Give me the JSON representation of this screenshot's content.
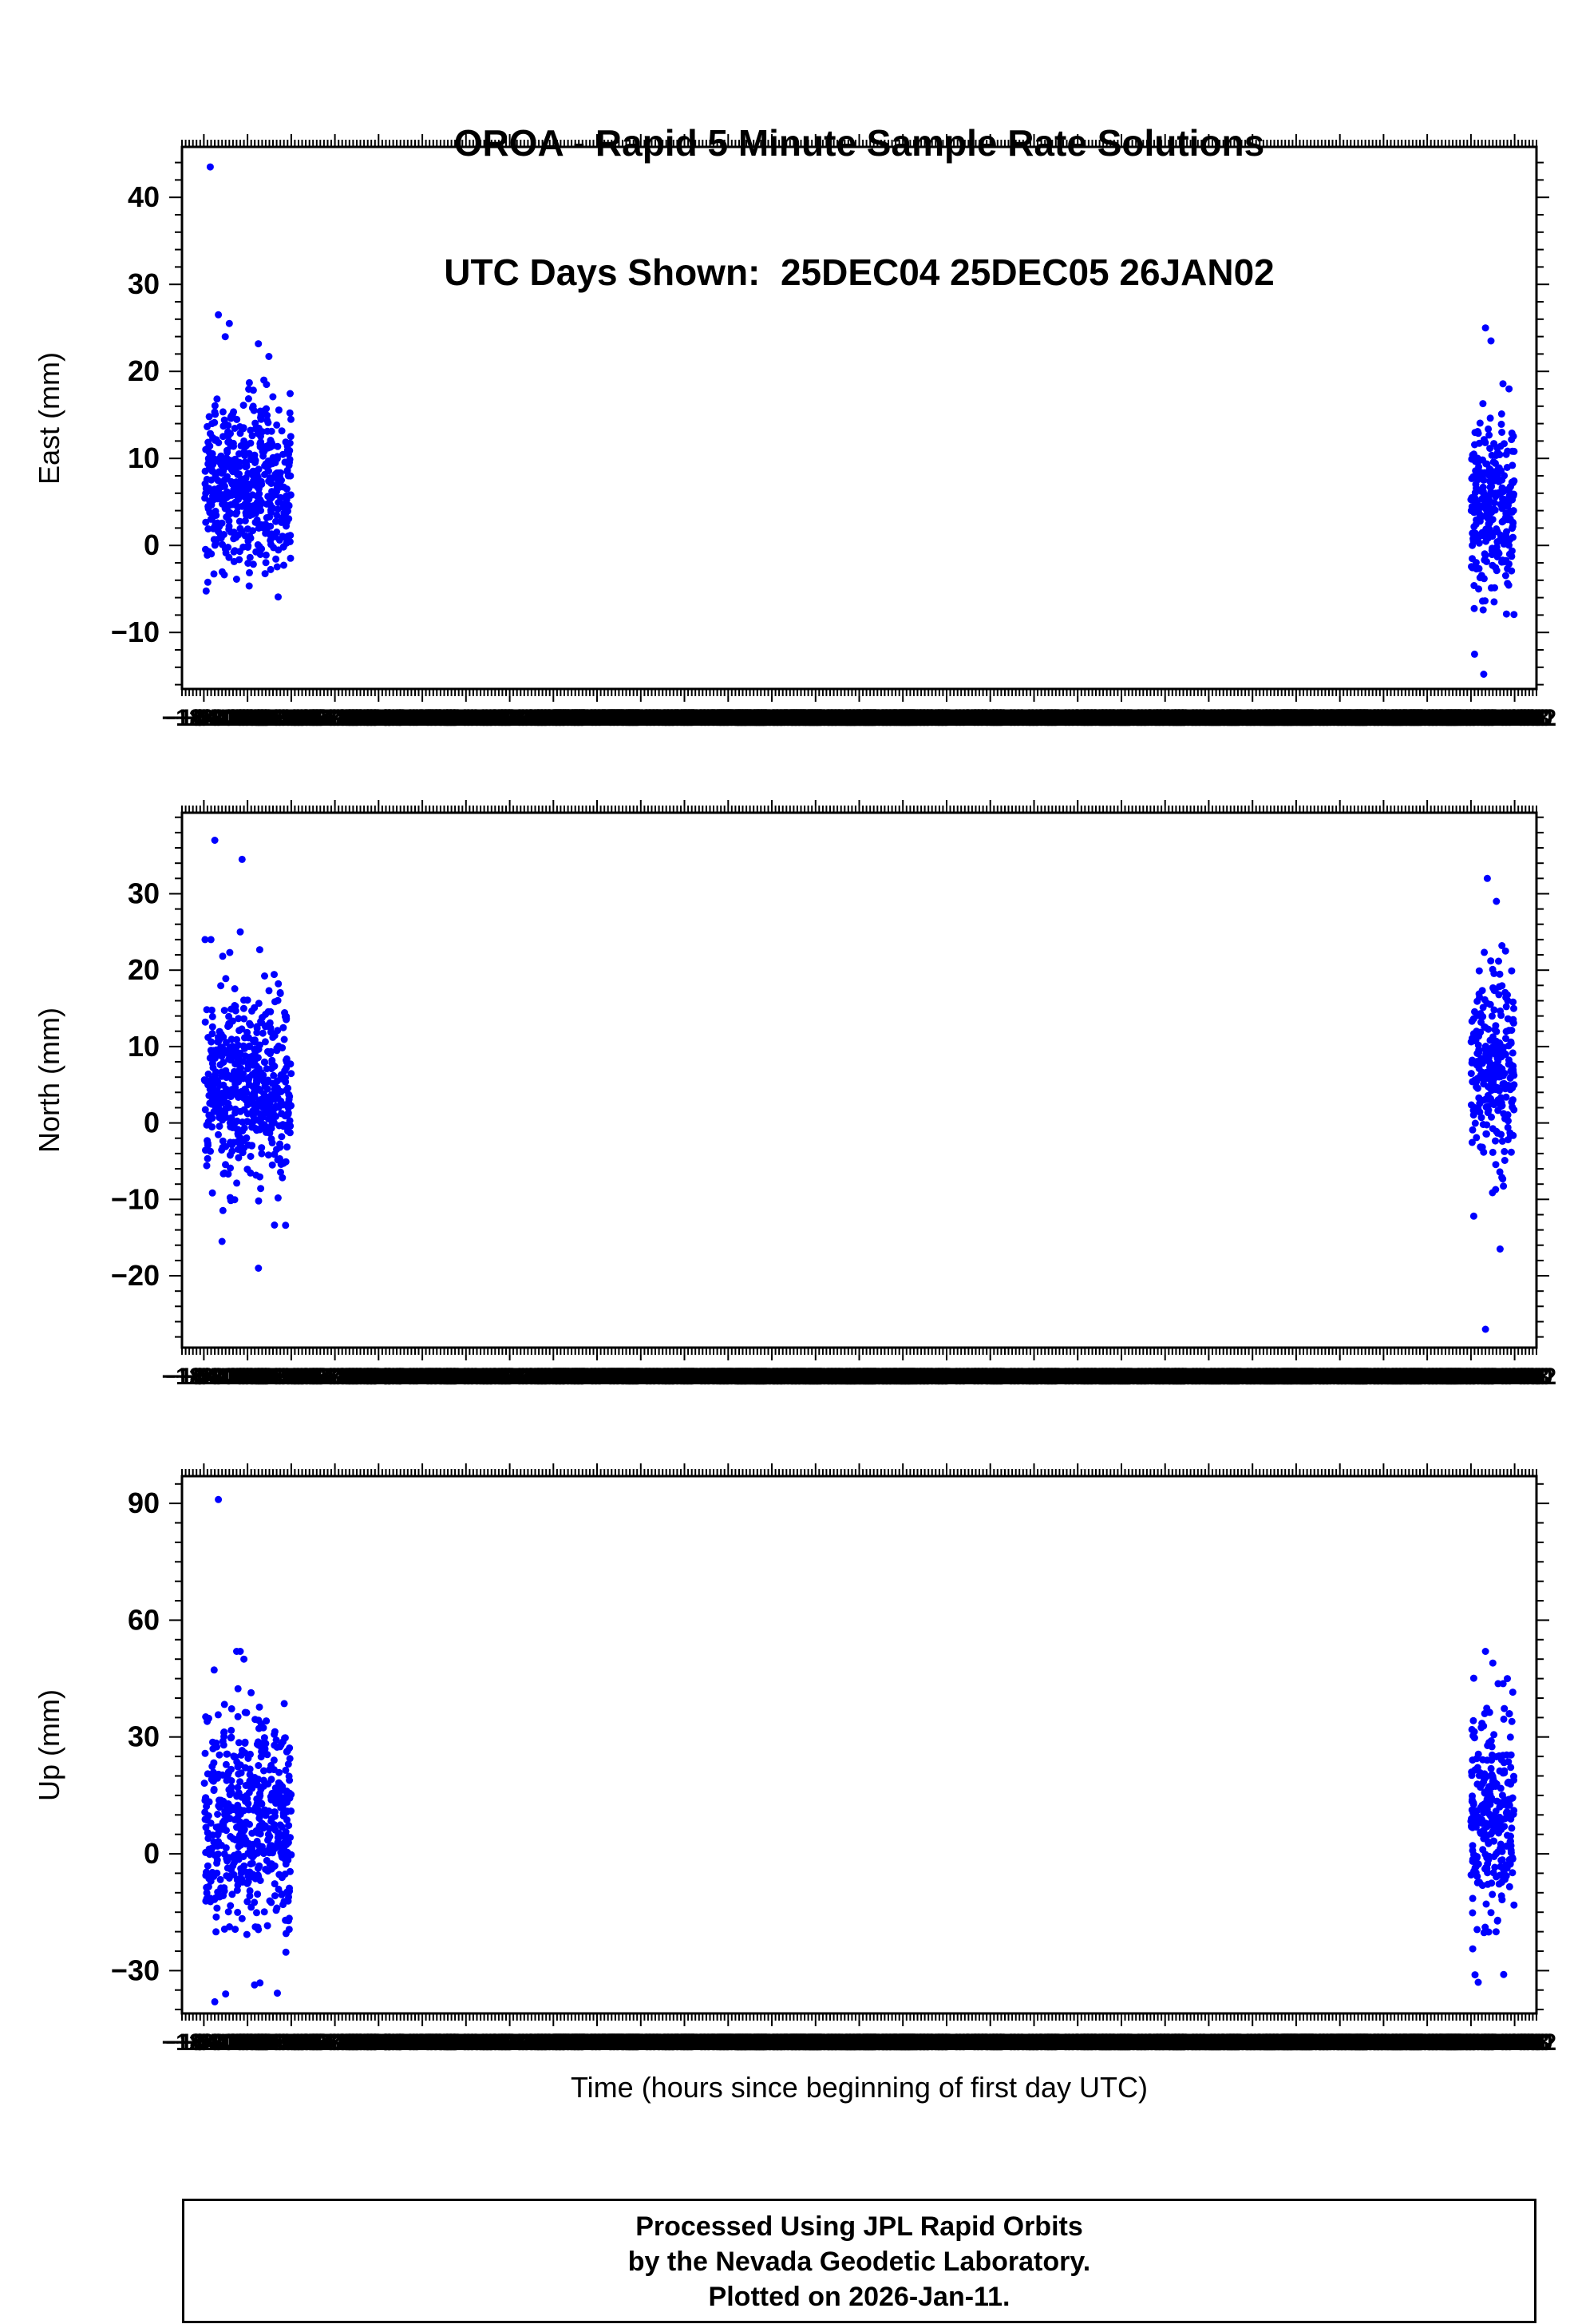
{
  "title": {
    "line1": "OROA - Rapid 5 Minute Sample Rate Solutions",
    "line2": "UTC Days Shown:  25DEC04 25DEC05 26JAN02"
  },
  "x_axis_label": "Time (hours since beginning of first day UTC)",
  "footer": {
    "line1": "Processed Using JPL Rapid Orbits",
    "line2": "by the Nevada Geodetic Laboratory.",
    "line3": "Plotted on 2026-Jan-11."
  },
  "colors": {
    "point": "#0000ff",
    "axis": "#000000",
    "background": "#ffffff",
    "text": "#000000"
  },
  "chart_data": [
    {
      "type": "scatter",
      "name": "east-panel",
      "ylabel": "East (mm)",
      "xlim": [
        -12,
        732
      ],
      "ylim": [
        -16.5,
        45.8
      ],
      "yticks": [
        -10,
        0,
        10,
        20,
        30,
        40
      ],
      "ytick_minor": 2,
      "xticks": {
        "start": -12,
        "end": 732,
        "minor_step": 2,
        "major_step": 24,
        "label_step": 2
      },
      "clusters": [
        {
          "day": "25DEC04-25DEC05",
          "x_start": 0.3,
          "x_end": 48,
          "count": 520,
          "y_mean": 7,
          "y_std": 5,
          "y_clamp": [
            -13.5,
            27
          ],
          "seed": 101
        },
        {
          "day": "26JAN02",
          "x_start": 696,
          "x_end": 719.7,
          "count": 270,
          "y_mean": 4.5,
          "y_std": 5,
          "y_clamp": [
            -12.5,
            21
          ],
          "seed": 102
        }
      ],
      "outliers": [
        [
          3.5,
          43.5
        ],
        [
          8,
          26.5
        ],
        [
          14,
          25.5
        ],
        [
          33,
          19
        ],
        [
          704,
          25
        ],
        [
          707,
          23.5
        ],
        [
          703,
          -14.8
        ],
        [
          698,
          -12.5
        ]
      ]
    },
    {
      "type": "scatter",
      "name": "north-panel",
      "ylabel": "North (mm)",
      "xlim": [
        -12,
        732
      ],
      "ylim": [
        -29.4,
        40.6
      ],
      "yticks": [
        -20,
        -10,
        0,
        10,
        20,
        30
      ],
      "ytick_minor": 2,
      "xticks": {
        "start": -12,
        "end": 732,
        "minor_step": 2,
        "major_step": 24,
        "label_step": 2
      },
      "clusters": [
        {
          "day": "25DEC04-25DEC05",
          "x_start": 0.3,
          "x_end": 48,
          "count": 520,
          "y_mean": 4.5,
          "y_std": 6,
          "y_clamp": [
            -16,
            24
          ],
          "seed": 201
        },
        {
          "day": "26JAN02",
          "x_start": 696,
          "x_end": 719.7,
          "count": 270,
          "y_mean": 7.5,
          "y_std": 6.5,
          "y_clamp": [
            -16,
            25
          ],
          "seed": 202
        }
      ],
      "outliers": [
        [
          6,
          37
        ],
        [
          21,
          34.5
        ],
        [
          20,
          25
        ],
        [
          30,
          -19
        ],
        [
          10,
          -15.5
        ],
        [
          705,
          32
        ],
        [
          710,
          29
        ],
        [
          715,
          22.5
        ],
        [
          704,
          -27
        ],
        [
          712,
          -16.5
        ]
      ]
    },
    {
      "type": "scatter",
      "name": "up-panel",
      "ylabel": "Up (mm)",
      "xlim": [
        -12,
        732
      ],
      "ylim": [
        -41,
        97
      ],
      "yticks": [
        -30,
        0,
        30,
        60,
        90
      ],
      "ytick_minor": 5,
      "xticks": {
        "start": -12,
        "end": 732,
        "minor_step": 2,
        "major_step": 24,
        "label_step": 2
      },
      "clusters": [
        {
          "day": "25DEC04-25DEC05",
          "x_start": 0.3,
          "x_end": 48,
          "count": 520,
          "y_mean": 8,
          "y_std": 14,
          "y_clamp": [
            -38,
            52
          ],
          "seed": 301
        },
        {
          "day": "26JAN02",
          "x_start": 696,
          "x_end": 719.7,
          "count": 270,
          "y_mean": 10,
          "y_std": 14,
          "y_clamp": [
            -33,
            52
          ],
          "seed": 302
        }
      ],
      "outliers": [
        [
          8,
          91
        ],
        [
          20,
          52
        ],
        [
          22,
          50
        ],
        [
          6,
          -38
        ],
        [
          12,
          -36
        ],
        [
          704,
          52
        ],
        [
          708,
          49
        ],
        [
          716,
          45
        ],
        [
          700,
          -33
        ],
        [
          714,
          -31
        ]
      ]
    }
  ]
}
